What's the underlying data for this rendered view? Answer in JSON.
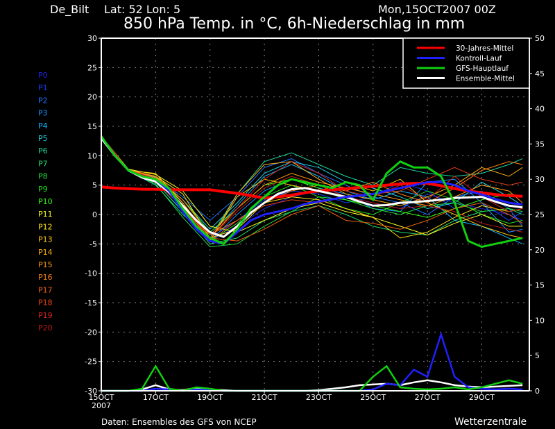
{
  "header": {
    "station": "De_Bilt",
    "location": "Lat: 52 Lon: 5",
    "run": "Mon,15OCT2007 00Z",
    "title": "850 hPa Temp. in °C, 6h-Niederschlag in mm"
  },
  "footer": {
    "source": "Daten: Ensembles des GFS von NCEP",
    "brand": "Wetterzentrale"
  },
  "chart_data": {
    "type": "line",
    "title": "850 hPa Temp. in °C, 6h-Niederschlag in mm",
    "x_unit": "hours after 15OCT2007 00Z",
    "xlim": [
      0,
      378
    ],
    "x_ticks": [
      {
        "h": 0,
        "label": "15OCT",
        "sub": "2007"
      },
      {
        "h": 48,
        "label": "17OCT"
      },
      {
        "h": 96,
        "label": "19OCT"
      },
      {
        "h": 144,
        "label": "21OCT"
      },
      {
        "h": 192,
        "label": "23OCT"
      },
      {
        "h": 240,
        "label": "25OCT"
      },
      {
        "h": 288,
        "label": "27OCT"
      },
      {
        "h": 336,
        "label": "29OCT"
      }
    ],
    "y_left": {
      "unit": "°C",
      "lim": [
        -30,
        30
      ],
      "ticks": [
        "30",
        "25",
        "20",
        "15",
        "10",
        "5",
        "0",
        "-5",
        "-10",
        "-15",
        "-20",
        "-25",
        "-30"
      ]
    },
    "y_right": {
      "unit": "mm",
      "lim": [
        0,
        50
      ],
      "ticks": [
        "50",
        "45",
        "40",
        "35",
        "30",
        "25",
        "20",
        "15",
        "10",
        "5",
        "0"
      ]
    },
    "grid": true,
    "legend_position": "top-right",
    "legend": [
      {
        "name": "30-Jahres-Mittel",
        "color": "#ff0000"
      },
      {
        "name": "Kontroll-Lauf",
        "color": "#2020ff"
      },
      {
        "name": "GFS-Hauptlauf",
        "color": "#10d010"
      },
      {
        "name": "Ensemble-Mittel",
        "color": "#ffffff"
      }
    ],
    "main_x": [
      0,
      12,
      24,
      36,
      48,
      60,
      72,
      84,
      96,
      108,
      120,
      132,
      144,
      156,
      168,
      180,
      192,
      204,
      216,
      228,
      240,
      252,
      264,
      276,
      288,
      300,
      312,
      324,
      336,
      348,
      360,
      372
    ],
    "temperature": {
      "30-Jahres-Mittel": [
        4.7,
        4.5,
        4.4,
        4.3,
        4.3,
        4.2,
        4.2,
        4.2,
        4.2,
        3.9,
        3.6,
        3.2,
        2.8,
        3.0,
        3.3,
        3.7,
        4.0,
        4.2,
        4.4,
        4.6,
        4.8,
        5.0,
        5.2,
        5.3,
        5.3,
        4.9,
        4.4,
        4.0,
        3.7,
        3.4,
        3.2,
        3.1
      ],
      "Kontroll-Lauf": [
        13.3,
        10,
        7.5,
        6.5,
        6,
        4,
        0.5,
        -2.5,
        -4.5,
        -5,
        -3,
        -1,
        0,
        0.5,
        1,
        1.8,
        2.2,
        2.6,
        3,
        3.2,
        3.5,
        4,
        4.5,
        5,
        5.5,
        5.5,
        5,
        4,
        3.4,
        2.6,
        2,
        1.7
      ],
      "GFS-Hauptlauf": [
        13.3,
        10,
        7.5,
        6.5,
        6,
        4.4,
        1,
        -2,
        -4,
        -5,
        -2.5,
        1,
        3,
        5,
        6,
        5.5,
        5,
        4.5,
        5.5,
        5,
        2.5,
        7,
        9,
        8,
        8,
        6.5,
        2,
        -4.5,
        -5.5,
        -5,
        -4.5,
        -4
      ],
      "Ensemble-Mittel": [
        13,
        10,
        7.5,
        6.3,
        5.6,
        3.8,
        1.5,
        -1,
        -3,
        -3.8,
        -2,
        0.3,
        2,
        3.5,
        4.3,
        4.5,
        4,
        3.5,
        3,
        2.2,
        1.5,
        1.6,
        2,
        2.1,
        2.3,
        2.5,
        2.8,
        2.9,
        3,
        2.2,
        1.5,
        1.2
      ]
    },
    "precipitation": {
      "Kontroll-Lauf": [
        0,
        0,
        0,
        0,
        0.3,
        0.2,
        0,
        0.2,
        0.1,
        0,
        0,
        0,
        0,
        0,
        0,
        0,
        0,
        0,
        0,
        0,
        0.2,
        1,
        0.8,
        3,
        2,
        8,
        2,
        0.5,
        0.3,
        0.2,
        0.3,
        0.2
      ],
      "GFS-Hauptlauf": [
        0,
        0,
        0,
        0.3,
        3.5,
        0.3,
        0,
        0.5,
        0.3,
        0,
        0,
        0,
        0,
        0,
        0,
        0,
        0,
        0,
        0,
        0,
        2,
        3.5,
        0.5,
        0.3,
        0.2,
        0.3,
        0.5,
        0.2,
        0.5,
        1,
        1.5,
        1
      ],
      "Ensemble-Mittel": [
        0,
        0,
        0,
        0.2,
        0.8,
        0.2,
        0.1,
        0.4,
        0.2,
        0.1,
        0,
        0,
        0,
        0,
        0,
        0,
        0.1,
        0.3,
        0.5,
        0.8,
        0.9,
        1,
        0.8,
        1.2,
        1.5,
        1.2,
        0.8,
        0.6,
        0.5,
        0.6,
        0.7,
        0.8
      ]
    },
    "members_x": [
      0,
      24,
      48,
      72,
      96,
      120,
      144,
      168,
      192,
      216,
      240,
      264,
      288,
      312,
      336,
      360,
      372
    ],
    "members": [
      {
        "name": "P0",
        "color": "#2020e0",
        "values": [
          13.3,
          7.5,
          6.0,
          2.0,
          -4.5,
          -2.0,
          1.0,
          3.0,
          4.0,
          3.0,
          2.0,
          1.0,
          3.5,
          2.0,
          1.0,
          0.0,
          -1.0
        ]
      },
      {
        "name": "P1",
        "color": "#1040ff",
        "values": [
          13.3,
          7.4,
          5.8,
          1.5,
          -4.0,
          -1.0,
          2.5,
          4.0,
          3.5,
          2.0,
          3.0,
          5.5,
          4.0,
          1.0,
          2.0,
          -1.0,
          0.5
        ]
      },
      {
        "name": "P2",
        "color": "#2070ff",
        "values": [
          13.3,
          7.6,
          6.2,
          3.0,
          -1.0,
          3.0,
          8.0,
          9.5,
          7.0,
          5.0,
          3.0,
          2.0,
          0.0,
          3.0,
          4.0,
          1.0,
          -2.0
        ]
      },
      {
        "name": "P3",
        "color": "#1090ff",
        "values": [
          13.3,
          7.3,
          5.5,
          0.5,
          -4.5,
          0.0,
          4.0,
          6.0,
          4.5,
          3.5,
          1.0,
          0.5,
          5.5,
          6.0,
          2.0,
          -3.0,
          -2.5
        ]
      },
      {
        "name": "P4",
        "color": "#10b8ff",
        "values": [
          13.3,
          7.5,
          6.0,
          1.0,
          -3.5,
          1.5,
          6.5,
          8.5,
          6.5,
          4.0,
          2.5,
          4.0,
          3.0,
          -1.0,
          -2.0,
          -4.0,
          -5.0
        ]
      },
      {
        "name": "P5",
        "color": "#20d0e0",
        "values": [
          13.3,
          7.6,
          6.3,
          2.5,
          -2.5,
          2.0,
          7.0,
          9.0,
          8.0,
          5.5,
          4.5,
          3.0,
          1.0,
          2.0,
          5.5,
          3.0,
          1.5
        ]
      },
      {
        "name": "P6",
        "color": "#20d8a0",
        "values": [
          13.3,
          7.4,
          5.0,
          0.0,
          -4.0,
          3.5,
          9.0,
          10.5,
          8.5,
          6.5,
          5.0,
          8.0,
          7.0,
          6.5,
          7.0,
          8.5,
          9.5
        ]
      },
      {
        "name": "P7",
        "color": "#20d870",
        "values": [
          13.3,
          7.5,
          5.5,
          0.5,
          -5.0,
          -4.0,
          -1.0,
          0.5,
          1.5,
          0.0,
          -2.0,
          -3.0,
          -3.5,
          -1.0,
          0.5,
          1.0,
          0.0
        ]
      },
      {
        "name": "P8",
        "color": "#20e040",
        "values": [
          13.3,
          7.5,
          5.2,
          -0.5,
          -5.5,
          -5.0,
          -2.0,
          0.5,
          3.0,
          2.5,
          1.0,
          0.0,
          1.5,
          2.0,
          0.5,
          1.0,
          0.5
        ]
      },
      {
        "name": "P9",
        "color": "#20e020",
        "values": [
          13.3,
          7.6,
          6.0,
          1.5,
          -4.5,
          -1.5,
          3.0,
          5.0,
          3.0,
          1.0,
          0.0,
          2.0,
          4.0,
          2.5,
          0.0,
          -1.5,
          -1.0
        ]
      },
      {
        "name": "P10",
        "color": "#30ff10",
        "values": [
          13.3,
          7.5,
          6.5,
          2.5,
          -3.0,
          1.0,
          5.0,
          6.0,
          4.5,
          2.5,
          1.5,
          0.5,
          -0.5,
          1.0,
          2.5,
          3.5,
          3.0
        ]
      },
      {
        "name": "P11",
        "color": "#ffff20",
        "values": [
          13.3,
          7.7,
          6.8,
          4.0,
          -2.0,
          -3.0,
          -1.0,
          1.0,
          2.0,
          0.5,
          -0.5,
          -2.0,
          -3.5,
          -1.5,
          0.0,
          -2.0,
          -2.0
        ]
      },
      {
        "name": "P12",
        "color": "#ffe010",
        "values": [
          13.3,
          7.6,
          6.5,
          3.5,
          -4.0,
          -2.5,
          2.0,
          3.0,
          2.5,
          1.0,
          -0.5,
          -4.0,
          -3.0,
          -0.5,
          1.5,
          0.5,
          1.0
        ]
      },
      {
        "name": "P13",
        "color": "#ffc810",
        "values": [
          13.3,
          7.5,
          7.0,
          2.0,
          -4.5,
          3.0,
          6.0,
          5.0,
          4.0,
          5.5,
          4.0,
          6.0,
          2.0,
          0.0,
          -2.0,
          -3.5,
          -4.0
        ]
      },
      {
        "name": "P14",
        "color": "#ffb010",
        "values": [
          13.3,
          7.4,
          6.0,
          1.5,
          -4.5,
          3.5,
          8.5,
          9.0,
          6.0,
          3.5,
          2.5,
          1.5,
          3.0,
          5.0,
          8.0,
          6.5,
          8.0
        ]
      },
      {
        "name": "P15",
        "color": "#ff9810",
        "values": [
          13.3,
          7.5,
          6.4,
          2.0,
          -4.0,
          1.0,
          5.0,
          7.0,
          5.5,
          4.5,
          3.5,
          2.5,
          1.5,
          3.0,
          5.0,
          4.0,
          2.0
        ]
      },
      {
        "name": "P16",
        "color": "#ff8010",
        "values": [
          13.3,
          7.6,
          6.5,
          2.5,
          -3.5,
          -1.0,
          2.0,
          4.0,
          5.0,
          4.0,
          5.5,
          3.5,
          2.0,
          4.5,
          7.5,
          9.0,
          8.5
        ]
      },
      {
        "name": "P17",
        "color": "#f06010",
        "values": [
          13.3,
          7.5,
          6.2,
          1.0,
          -4.0,
          -4.5,
          -2.5,
          0.0,
          1.5,
          -1.0,
          -1.5,
          -2.5,
          -1.0,
          1.0,
          2.0,
          0.0,
          -1.5
        ]
      },
      {
        "name": "P18",
        "color": "#e84010",
        "values": [
          13.3,
          7.5,
          6.0,
          1.5,
          -4.5,
          -1.0,
          1.5,
          2.5,
          2.0,
          3.0,
          3.5,
          4.0,
          6.0,
          8.0,
          6.0,
          5.0,
          5.5
        ]
      },
      {
        "name": "P19",
        "color": "#d82020",
        "values": [
          13.3,
          7.4,
          5.8,
          1.0,
          -3.5,
          1.0,
          6.0,
          9.0,
          7.0,
          4.0,
          3.0,
          5.0,
          2.5,
          6.5,
          3.0,
          0.5,
          1.0
        ]
      },
      {
        "name": "P20",
        "color": "#c01818",
        "values": [
          13.3,
          7.5,
          6.1,
          1.5,
          -4.0,
          0.5,
          4.5,
          6.5,
          5.0,
          3.0,
          2.0,
          1.0,
          1.5,
          0.5,
          -1.5,
          -2.5,
          -3.0
        ]
      }
    ]
  }
}
